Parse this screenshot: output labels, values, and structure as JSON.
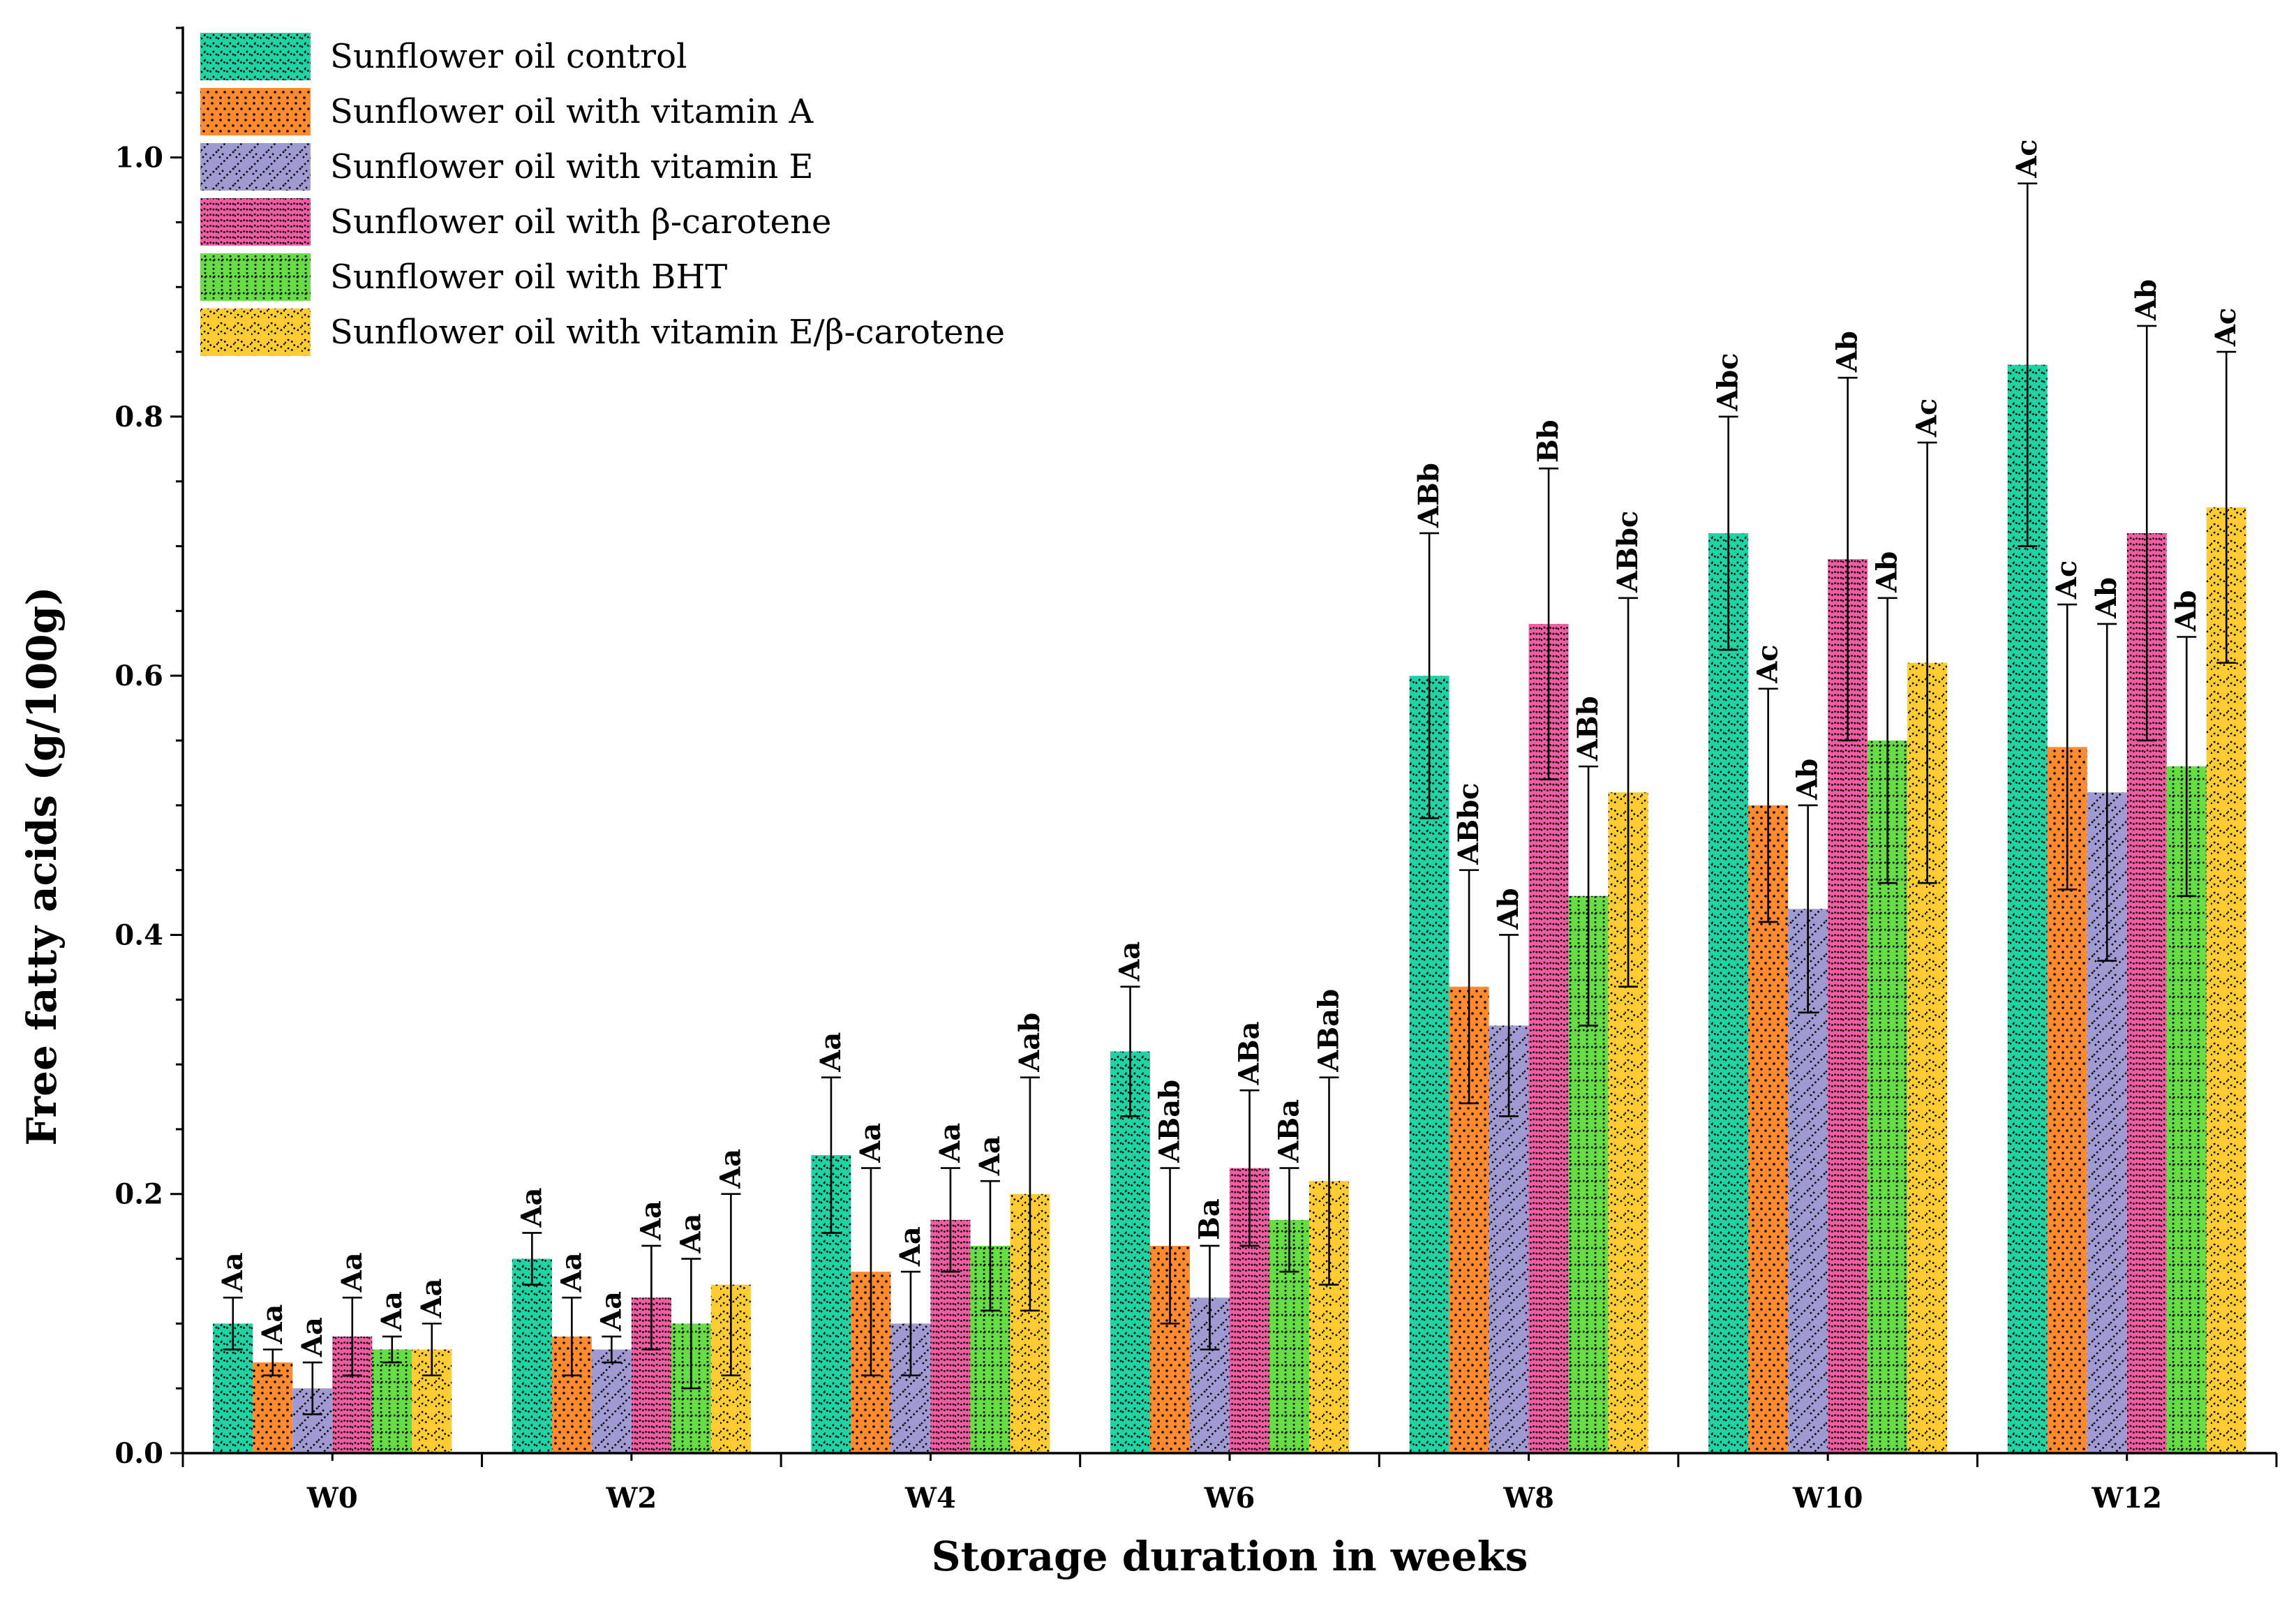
{
  "chart_data": {
    "type": "bar",
    "xlabel": "Storage duration in weeks",
    "ylabel": "Free fatty acids (g/100g)",
    "ylim": [
      0.0,
      1.1
    ],
    "y_ticks": [
      "0.0",
      "0.2",
      "0.4",
      "0.6",
      "0.8",
      "1.0"
    ],
    "categories": [
      "W0",
      "W2",
      "W4",
      "W6",
      "W8",
      "W10",
      "W12"
    ],
    "legend_position": "top-left",
    "series": [
      {
        "name": "Sunflower oil control",
        "color": "#1fd3a4",
        "pattern": "zigzag",
        "values": [
          0.1,
          0.15,
          0.23,
          0.31,
          0.6,
          0.71,
          0.84
        ],
        "errors": [
          0.02,
          0.02,
          0.06,
          0.05,
          0.11,
          0.09,
          0.14
        ],
        "labels": [
          "Aa",
          "Aa",
          "Aa",
          "Aa",
          "ABb",
          "Abc",
          "Ac"
        ]
      },
      {
        "name": "Sunflower oil with vitamin A",
        "color": "#ff8a2f",
        "pattern": "dots",
        "values": [
          0.07,
          0.09,
          0.14,
          0.16,
          0.36,
          0.5,
          0.545
        ],
        "errors": [
          0.01,
          0.03,
          0.08,
          0.06,
          0.09,
          0.09,
          0.11
        ],
        "labels": [
          "Aa",
          "Aa",
          "Aa",
          "ABab",
          "ABbc",
          "Ac",
          "Ac"
        ]
      },
      {
        "name": "Sunflower oil with vitamin E",
        "color": "#9f9ad2",
        "pattern": "hatch",
        "values": [
          0.05,
          0.08,
          0.1,
          0.12,
          0.33,
          0.42,
          0.51
        ],
        "errors": [
          0.02,
          0.01,
          0.04,
          0.04,
          0.07,
          0.08,
          0.13
        ],
        "labels": [
          "Aa",
          "Aa",
          "Aa",
          "Ba",
          "Ab",
          "Ab",
          "Ab"
        ]
      },
      {
        "name": "Sunflower oil with β-carotene",
        "color": "#f25ca5",
        "pattern": "zigzag-dense",
        "values": [
          0.09,
          0.12,
          0.18,
          0.22,
          0.64,
          0.69,
          0.71
        ],
        "errors": [
          0.03,
          0.04,
          0.04,
          0.06,
          0.12,
          0.14,
          0.16
        ],
        "labels": [
          "Aa",
          "Aa",
          "Aa",
          "ABa",
          "Bb",
          "Ab",
          "Ab"
        ]
      },
      {
        "name": "Sunflower oil with BHT",
        "color": "#66dd44",
        "pattern": "grid",
        "values": [
          0.08,
          0.1,
          0.16,
          0.18,
          0.43,
          0.55,
          0.53
        ],
        "errors": [
          0.01,
          0.05,
          0.05,
          0.04,
          0.1,
          0.11,
          0.1
        ],
        "labels": [
          "Aa",
          "Aa",
          "Aa",
          "ABa",
          "ABb",
          "Ab",
          "Ab"
        ]
      },
      {
        "name": "Sunflower oil with vitamin E/β-carotene",
        "color": "#ffcc33",
        "pattern": "waves",
        "values": [
          0.08,
          0.13,
          0.2,
          0.21,
          0.51,
          0.61,
          0.73
        ],
        "errors": [
          0.02,
          0.07,
          0.09,
          0.08,
          0.15,
          0.17,
          0.12
        ],
        "labels": [
          "Aa",
          "Aa",
          "Aab",
          "ABab",
          "ABbc",
          "Ac",
          "Ac"
        ]
      }
    ]
  }
}
